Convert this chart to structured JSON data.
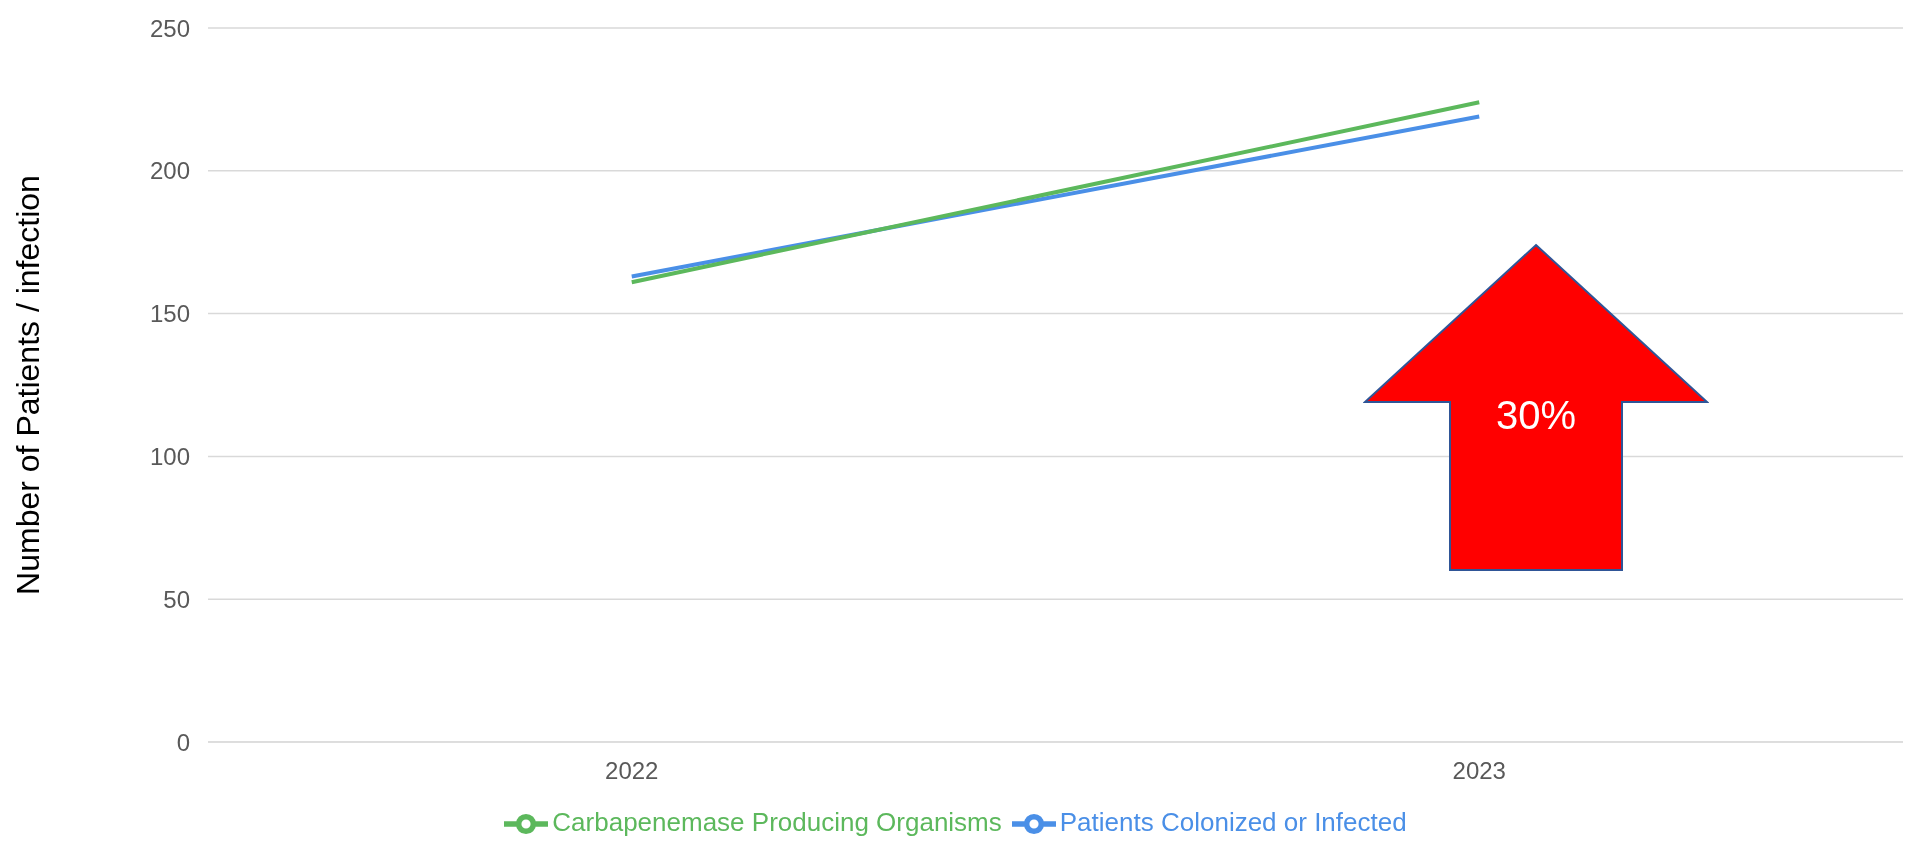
{
  "chart_data": {
    "type": "line",
    "ylabel": "Number of Patients / infection",
    "categories": [
      "2022",
      "2023"
    ],
    "series": [
      {
        "name": "Patients Colonized or Infected",
        "color": "#4a8fe7",
        "values": [
          163,
          219
        ]
      },
      {
        "name": "Carbapenemase Producing Organisms",
        "color": "#5cb85c",
        "values": [
          161,
          224
        ]
      }
    ],
    "ylim": [
      0,
      250
    ],
    "yticks": [
      0,
      50,
      100,
      150,
      200,
      250
    ],
    "grid": "y",
    "legend": "bottom",
    "marker": "none",
    "line_style": "solid",
    "annotations": [
      "30%"
    ]
  }
}
